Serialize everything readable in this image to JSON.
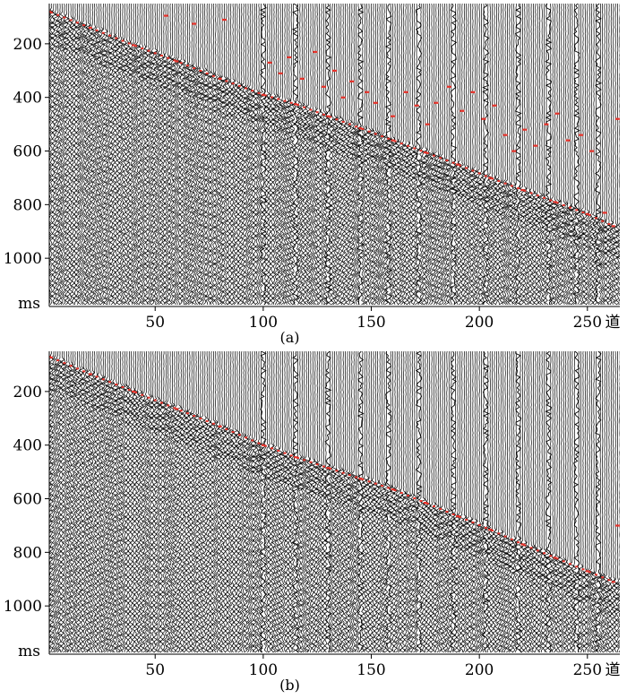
{
  "chart_data": [
    {
      "type": "seismic-gather",
      "caption": "(a)",
      "x_unit_label": "道",
      "y_unit_label": "ms",
      "xlim": [
        1,
        265
      ],
      "ylim": [
        50,
        1180
      ],
      "xticks": [
        {
          "value": 50,
          "label": "50"
        },
        {
          "value": 100,
          "label": "100"
        },
        {
          "value": 150,
          "label": "150"
        },
        {
          "value": 200,
          "label": "200"
        },
        {
          "value": 250,
          "label": "250"
        }
      ],
      "yticks": [
        {
          "value": 200,
          "label": "200"
        },
        {
          "value": 400,
          "label": "400"
        },
        {
          "value": 600,
          "label": "600"
        },
        {
          "value": 800,
          "label": "800"
        },
        {
          "value": 1000,
          "label": "1000"
        }
      ],
      "trace_color": "#000000",
      "pick_color": "#e8322a",
      "noisy_traces": [
        100,
        115,
        130,
        145,
        158,
        172,
        188,
        203,
        218,
        232,
        245,
        255
      ],
      "first_break_picks": [
        {
          "trace": 1,
          "time": 80
        },
        {
          "trace": 20,
          "time": 140
        },
        {
          "trace": 40,
          "time": 205
        },
        {
          "trace": 60,
          "time": 265
        },
        {
          "trace": 80,
          "time": 330
        },
        {
          "trace": 100,
          "time": 390
        },
        {
          "trace": 115,
          "time": 425
        },
        {
          "trace": 130,
          "time": 470
        },
        {
          "trace": 145,
          "time": 515
        },
        {
          "trace": 160,
          "time": 560
        },
        {
          "trace": 175,
          "time": 605
        },
        {
          "trace": 190,
          "time": 650
        },
        {
          "trace": 205,
          "time": 700
        },
        {
          "trace": 220,
          "time": 745
        },
        {
          "trace": 235,
          "time": 790
        },
        {
          "trace": 250,
          "time": 835
        },
        {
          "trace": 262,
          "time": 880
        }
      ],
      "scattered_picks": [
        {
          "trace": 55,
          "time": 95
        },
        {
          "trace": 68,
          "time": 125
        },
        {
          "trace": 82,
          "time": 110
        },
        {
          "trace": 103,
          "time": 270
        },
        {
          "trace": 108,
          "time": 310
        },
        {
          "trace": 112,
          "time": 250
        },
        {
          "trace": 118,
          "time": 330
        },
        {
          "trace": 124,
          "time": 230
        },
        {
          "trace": 128,
          "time": 360
        },
        {
          "trace": 133,
          "time": 300
        },
        {
          "trace": 137,
          "time": 400
        },
        {
          "trace": 141,
          "time": 340
        },
        {
          "trace": 148,
          "time": 380
        },
        {
          "trace": 152,
          "time": 420
        },
        {
          "trace": 160,
          "time": 470
        },
        {
          "trace": 166,
          "time": 380
        },
        {
          "trace": 171,
          "time": 430
        },
        {
          "trace": 176,
          "time": 500
        },
        {
          "trace": 180,
          "time": 420
        },
        {
          "trace": 186,
          "time": 360
        },
        {
          "trace": 192,
          "time": 450
        },
        {
          "trace": 197,
          "time": 380
        },
        {
          "trace": 202,
          "time": 480
        },
        {
          "trace": 207,
          "time": 430
        },
        {
          "trace": 212,
          "time": 540
        },
        {
          "trace": 216,
          "time": 600
        },
        {
          "trace": 221,
          "time": 520
        },
        {
          "trace": 226,
          "time": 580
        },
        {
          "trace": 231,
          "time": 500
        },
        {
          "trace": 236,
          "time": 460
        },
        {
          "trace": 241,
          "time": 560
        },
        {
          "trace": 247,
          "time": 540
        },
        {
          "trace": 252,
          "time": 600
        },
        {
          "trace": 258,
          "time": 830
        },
        {
          "trace": 264,
          "time": 480
        }
      ]
    },
    {
      "type": "seismic-gather",
      "caption": "(b)",
      "x_unit_label": "道",
      "y_unit_label": "ms",
      "xlim": [
        1,
        265
      ],
      "ylim": [
        50,
        1180
      ],
      "xticks": [
        {
          "value": 50,
          "label": "50"
        },
        {
          "value": 100,
          "label": "100"
        },
        {
          "value": 150,
          "label": "150"
        },
        {
          "value": 200,
          "label": "200"
        },
        {
          "value": 250,
          "label": "250"
        }
      ],
      "yticks": [
        {
          "value": 200,
          "label": "200"
        },
        {
          "value": 400,
          "label": "400"
        },
        {
          "value": 600,
          "label": "600"
        },
        {
          "value": 800,
          "label": "800"
        },
        {
          "value": 1000,
          "label": "1000"
        }
      ],
      "trace_color": "#000000",
      "pick_color": "#e8322a",
      "noisy_traces": [
        100,
        115,
        130,
        145,
        158,
        172,
        188,
        203,
        218,
        232,
        245,
        255
      ],
      "first_break_picks": [
        {
          "trace": 1,
          "time": 70
        },
        {
          "trace": 20,
          "time": 135
        },
        {
          "trace": 40,
          "time": 200
        },
        {
          "trace": 60,
          "time": 265
        },
        {
          "trace": 80,
          "time": 330
        },
        {
          "trace": 100,
          "time": 400
        },
        {
          "trace": 115,
          "time": 445
        },
        {
          "trace": 130,
          "time": 485
        },
        {
          "trace": 145,
          "time": 525
        },
        {
          "trace": 160,
          "time": 565
        },
        {
          "trace": 175,
          "time": 615
        },
        {
          "trace": 190,
          "time": 665
        },
        {
          "trace": 205,
          "time": 715
        },
        {
          "trace": 220,
          "time": 770
        },
        {
          "trace": 235,
          "time": 820
        },
        {
          "trace": 250,
          "time": 870
        },
        {
          "trace": 262,
          "time": 910
        }
      ],
      "scattered_picks": [
        {
          "trace": 264,
          "time": 700
        }
      ]
    }
  ]
}
